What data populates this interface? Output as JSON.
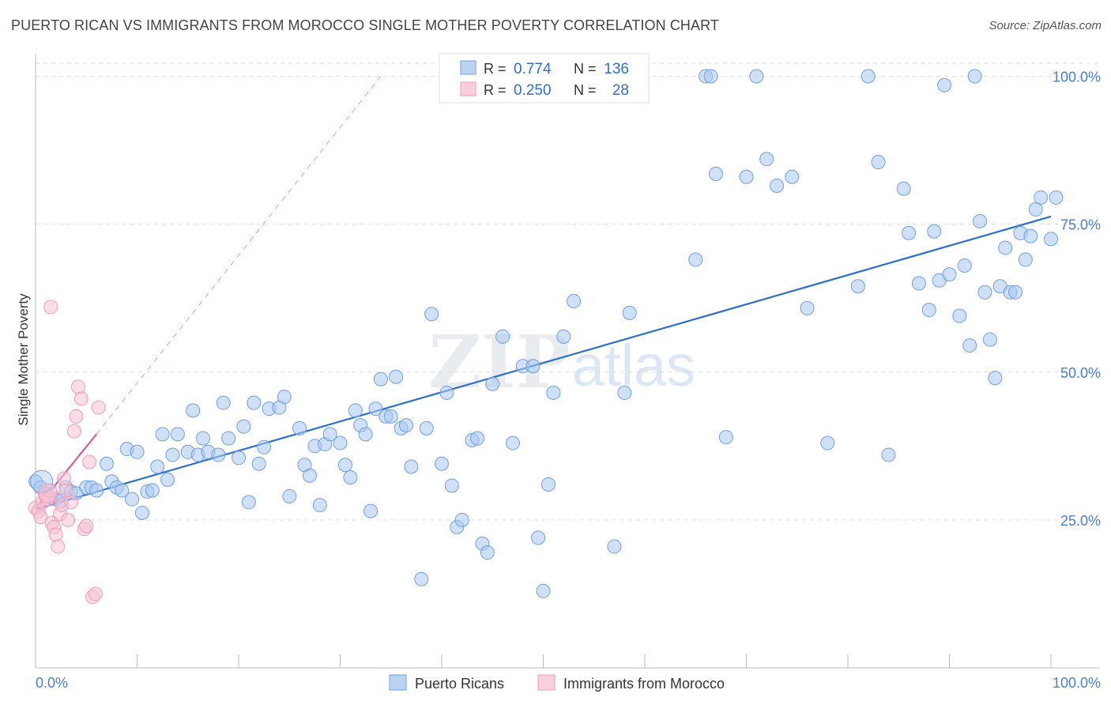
{
  "title": "PUERTO RICAN VS IMMIGRANTS FROM MOROCCO SINGLE MOTHER POVERTY CORRELATION CHART",
  "source": "Source: ZipAtlas.com",
  "watermark": {
    "zip": "ZIP",
    "atlas": "atlas"
  },
  "chart_data": {
    "type": "scatter",
    "ylabel": "Single Mother Poverty",
    "xlim": [
      0,
      100
    ],
    "ylim": [
      0,
      100
    ],
    "x_tick_labels": {
      "left": "0.0%",
      "right": "100.0%"
    },
    "y_ticks": [
      {
        "value": 25,
        "label": "25.0%"
      },
      {
        "value": 50,
        "label": "50.0%"
      },
      {
        "value": 75,
        "label": "75.0%"
      },
      {
        "value": 100,
        "label": "100.0%"
      }
    ],
    "legend_stats": [
      {
        "r_label": "R =",
        "r_value": "0.774",
        "n_label": "N =",
        "n_value": "136",
        "color": "#6fa0e0"
      },
      {
        "r_label": "R =",
        "r_value": "0.250",
        "n_label": "N =",
        "n_value": "28",
        "color": "#f29bb4"
      }
    ],
    "series": [
      {
        "name": "Puerto Ricans",
        "color": "#6fa0e0",
        "fill": "#a9c8f0",
        "trend": {
          "x0": 0,
          "y0": 26.8,
          "x1": 100,
          "y1": 76.3,
          "color": "#2a6fcc"
        },
        "points": [
          [
            0,
            31.5
          ],
          [
            0.5,
            30.5
          ],
          [
            1,
            29.5
          ],
          [
            1.5,
            28.8
          ],
          [
            2,
            28.5
          ],
          [
            2.5,
            28.2
          ],
          [
            3,
            30.5
          ],
          [
            3.5,
            29.8
          ],
          [
            4,
            29.5
          ],
          [
            5,
            30.5
          ],
          [
            5.5,
            30.5
          ],
          [
            6,
            30
          ],
          [
            7,
            34.5
          ],
          [
            7.5,
            31.5
          ],
          [
            8,
            30.5
          ],
          [
            8.5,
            30
          ],
          [
            9,
            37
          ],
          [
            9.5,
            28.5
          ],
          [
            10,
            36.5
          ],
          [
            10.5,
            26.2
          ],
          [
            11,
            29.8
          ],
          [
            11.5,
            30
          ],
          [
            12,
            34
          ],
          [
            12.5,
            39.5
          ],
          [
            13,
            31.8
          ],
          [
            13.5,
            36
          ],
          [
            14,
            39.5
          ],
          [
            15,
            36.5
          ],
          [
            15.5,
            43.5
          ],
          [
            16,
            36
          ],
          [
            16.5,
            38.8
          ],
          [
            17,
            36.5
          ],
          [
            18,
            36
          ],
          [
            18.5,
            44.8
          ],
          [
            19,
            38.8
          ],
          [
            20,
            35.5
          ],
          [
            20.5,
            40.8
          ],
          [
            21,
            28
          ],
          [
            21.5,
            44.8
          ],
          [
            22,
            34.5
          ],
          [
            22.5,
            37.3
          ],
          [
            23,
            43.8
          ],
          [
            24,
            44
          ],
          [
            24.5,
            45.8
          ],
          [
            25,
            29
          ],
          [
            26,
            40.5
          ],
          [
            26.5,
            34.3
          ],
          [
            27,
            32.5
          ],
          [
            27.5,
            37.5
          ],
          [
            28,
            27.5
          ],
          [
            28.5,
            37.8
          ],
          [
            29,
            39.5
          ],
          [
            30,
            38
          ],
          [
            30.5,
            34.3
          ],
          [
            31,
            32.2
          ],
          [
            31.5,
            43.5
          ],
          [
            32,
            41
          ],
          [
            32.5,
            39.5
          ],
          [
            33,
            26.5
          ],
          [
            33.5,
            43.8
          ],
          [
            34,
            48.8
          ],
          [
            34.5,
            42.5
          ],
          [
            35,
            42.5
          ],
          [
            35.5,
            49.2
          ],
          [
            36,
            40.5
          ],
          [
            36.5,
            41
          ],
          [
            37,
            34
          ],
          [
            38,
            15
          ],
          [
            38.5,
            40.5
          ],
          [
            39,
            59.8
          ],
          [
            40,
            34.5
          ],
          [
            40.5,
            46.5
          ],
          [
            41,
            30.8
          ],
          [
            41.5,
            23.8
          ],
          [
            42,
            25
          ],
          [
            43,
            38.5
          ],
          [
            43.5,
            38.8
          ],
          [
            44,
            21
          ],
          [
            44.5,
            19.5
          ],
          [
            45,
            48
          ],
          [
            46,
            56
          ],
          [
            47,
            38
          ],
          [
            48,
            51
          ],
          [
            49,
            51
          ],
          [
            49.5,
            22
          ],
          [
            50,
            13
          ],
          [
            50.5,
            31
          ],
          [
            51,
            46.5
          ],
          [
            52,
            56
          ],
          [
            53,
            62
          ],
          [
            57,
            20.5
          ],
          [
            58,
            46.5
          ],
          [
            58.5,
            60
          ],
          [
            65,
            69
          ],
          [
            66,
            100
          ],
          [
            66.5,
            100
          ],
          [
            67,
            83.5
          ],
          [
            68,
            39
          ],
          [
            70,
            83
          ],
          [
            71,
            100
          ],
          [
            72,
            86
          ],
          [
            73,
            81.5
          ],
          [
            74.5,
            83
          ],
          [
            76,
            60.8
          ],
          [
            78,
            38
          ],
          [
            81,
            64.5
          ],
          [
            82,
            100
          ],
          [
            83,
            85.5
          ],
          [
            84,
            36
          ],
          [
            85.5,
            81
          ],
          [
            86,
            73.5
          ],
          [
            87,
            65
          ],
          [
            88,
            60.5
          ],
          [
            88.5,
            73.8
          ],
          [
            89,
            65.5
          ],
          [
            89.5,
            98.5
          ],
          [
            90,
            66.5
          ],
          [
            91,
            59.5
          ],
          [
            91.5,
            68
          ],
          [
            92,
            54.5
          ],
          [
            92.5,
            100
          ],
          [
            93,
            75.5
          ],
          [
            93.5,
            63.5
          ],
          [
            94,
            55.5
          ],
          [
            94.5,
            49
          ],
          [
            95,
            64.5
          ],
          [
            95.5,
            71
          ],
          [
            96,
            63.5
          ],
          [
            96.5,
            63.5
          ],
          [
            97,
            73.5
          ],
          [
            97.5,
            69
          ],
          [
            98,
            73
          ],
          [
            98.5,
            77.5
          ],
          [
            99,
            79.5
          ],
          [
            100,
            72.5
          ],
          [
            100.5,
            79.5
          ]
        ]
      },
      {
        "name": "Immigrants from Morocco",
        "color": "#f29bb4",
        "fill": "#f8c3d3",
        "trend": {
          "x0": 0,
          "y0": 26.8,
          "x1": 6,
          "y1": 39.5,
          "color": "#e05c8c"
        },
        "trend_ext": {
          "x0": 6,
          "y0": 39.5,
          "x1": 34,
          "y1": 100,
          "color": "#e89ab2"
        },
        "points": [
          [
            0,
            27
          ],
          [
            0.3,
            26.5
          ],
          [
            0.5,
            25.5
          ],
          [
            0.7,
            28
          ],
          [
            1,
            29
          ],
          [
            1.2,
            28.5
          ],
          [
            1.4,
            30
          ],
          [
            1.6,
            24.5
          ],
          [
            1.8,
            23.8
          ],
          [
            2,
            22.5
          ],
          [
            2.2,
            20.5
          ],
          [
            2.4,
            26
          ],
          [
            2.6,
            27.5
          ],
          [
            2.8,
            32
          ],
          [
            3,
            30
          ],
          [
            3.2,
            25
          ],
          [
            3.5,
            28
          ],
          [
            3.8,
            40
          ],
          [
            4,
            42.5
          ],
          [
            4.2,
            47.5
          ],
          [
            4.5,
            45.5
          ],
          [
            4.8,
            23.5
          ],
          [
            5,
            24
          ],
          [
            5.3,
            34.8
          ],
          [
            5.6,
            12
          ],
          [
            5.9,
            12.5
          ],
          [
            6.2,
            44
          ],
          [
            1.5,
            61
          ]
        ]
      }
    ]
  }
}
